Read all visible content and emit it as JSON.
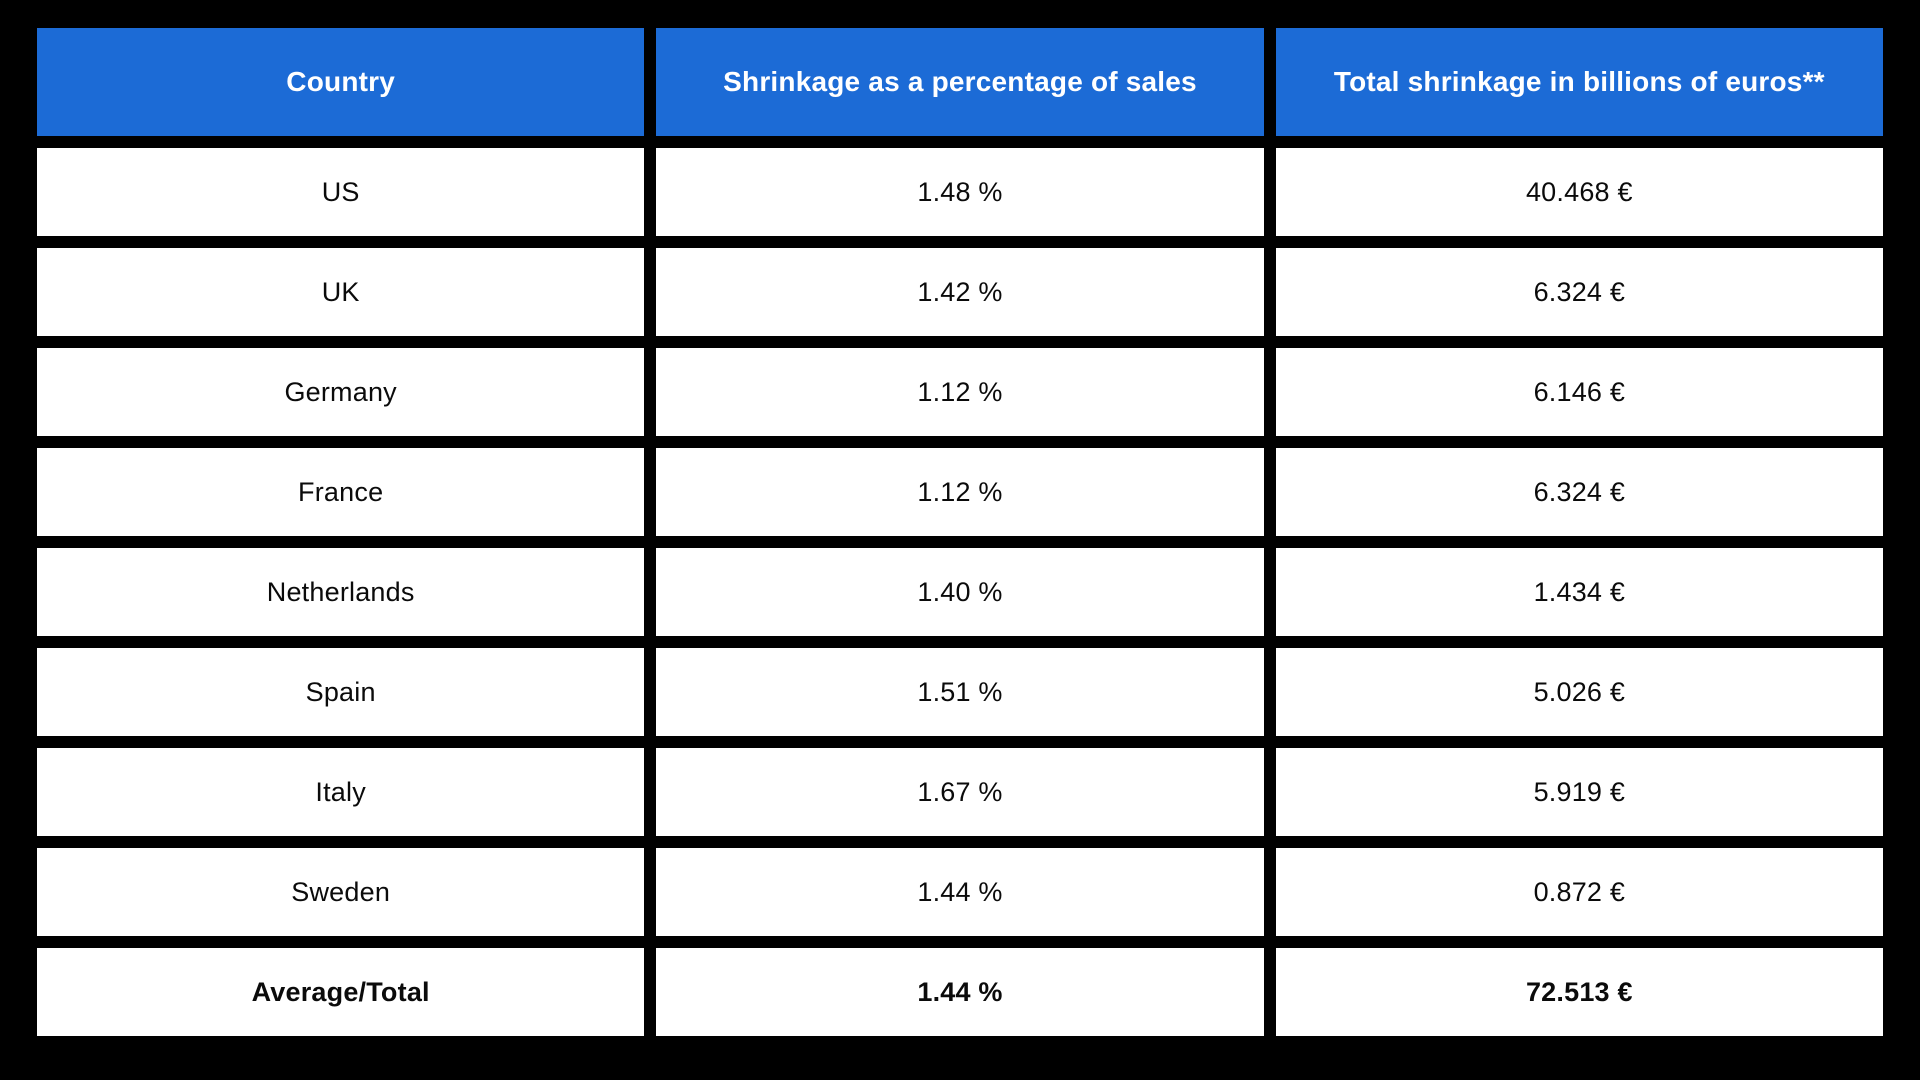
{
  "title": "Retail shrinkage by country table",
  "colors": {
    "page_background": "#000000",
    "header_background": "#1c6bd6",
    "header_text": "#ffffff",
    "cell_background": "#ffffff",
    "cell_text": "#0b0b0b"
  },
  "table": {
    "columns": [
      "Country",
      "Shrinkage as a percentage of sales",
      "Total shrinkage in billions of euros**"
    ],
    "rows": [
      {
        "country": "US",
        "shrinkage": "1.48 %",
        "total": "40.468 €"
      },
      {
        "country": "UK",
        "shrinkage": "1.42 %",
        "total": "6.324 €"
      },
      {
        "country": "Germany",
        "shrinkage": "1.12 %",
        "total": "6.146 €"
      },
      {
        "country": "France",
        "shrinkage": "1.12 %",
        "total": "6.324 €"
      },
      {
        "country": "Netherlands",
        "shrinkage": "1.40 %",
        "total": "1.434 €"
      },
      {
        "country": "Spain",
        "shrinkage": "1.51 %",
        "total": "5.026 €"
      },
      {
        "country": "Italy",
        "shrinkage": "1.67 %",
        "total": "5.919 €"
      },
      {
        "country": "Sweden",
        "shrinkage": "1.44 %",
        "total": "0.872 €"
      },
      {
        "country": "Average/Total",
        "shrinkage": "1.44 %",
        "total": "72.513 €"
      }
    ]
  },
  "chart_data": {
    "type": "table",
    "title": "",
    "columns": [
      "Country",
      "Shrinkage as a percentage of sales",
      "Total shrinkage in billions of euros**"
    ],
    "categories": [
      "US",
      "UK",
      "Germany",
      "France",
      "Netherlands",
      "Spain",
      "Italy",
      "Sweden",
      "Average/Total"
    ],
    "series": [
      {
        "name": "Shrinkage as a percentage of sales (%)",
        "values": [
          1.48,
          1.42,
          1.12,
          1.12,
          1.4,
          1.51,
          1.67,
          1.44,
          1.44
        ]
      },
      {
        "name": "Total shrinkage in billions of euros (€)",
        "values": [
          40.468,
          6.324,
          6.146,
          6.324,
          1.434,
          5.026,
          5.919,
          0.872,
          72.513
        ]
      }
    ],
    "layout_hints": {
      "header_style": "blue background, white bold text",
      "footer_row": "Average/Total, bold",
      "grid": "black gaps between white cells"
    }
  }
}
